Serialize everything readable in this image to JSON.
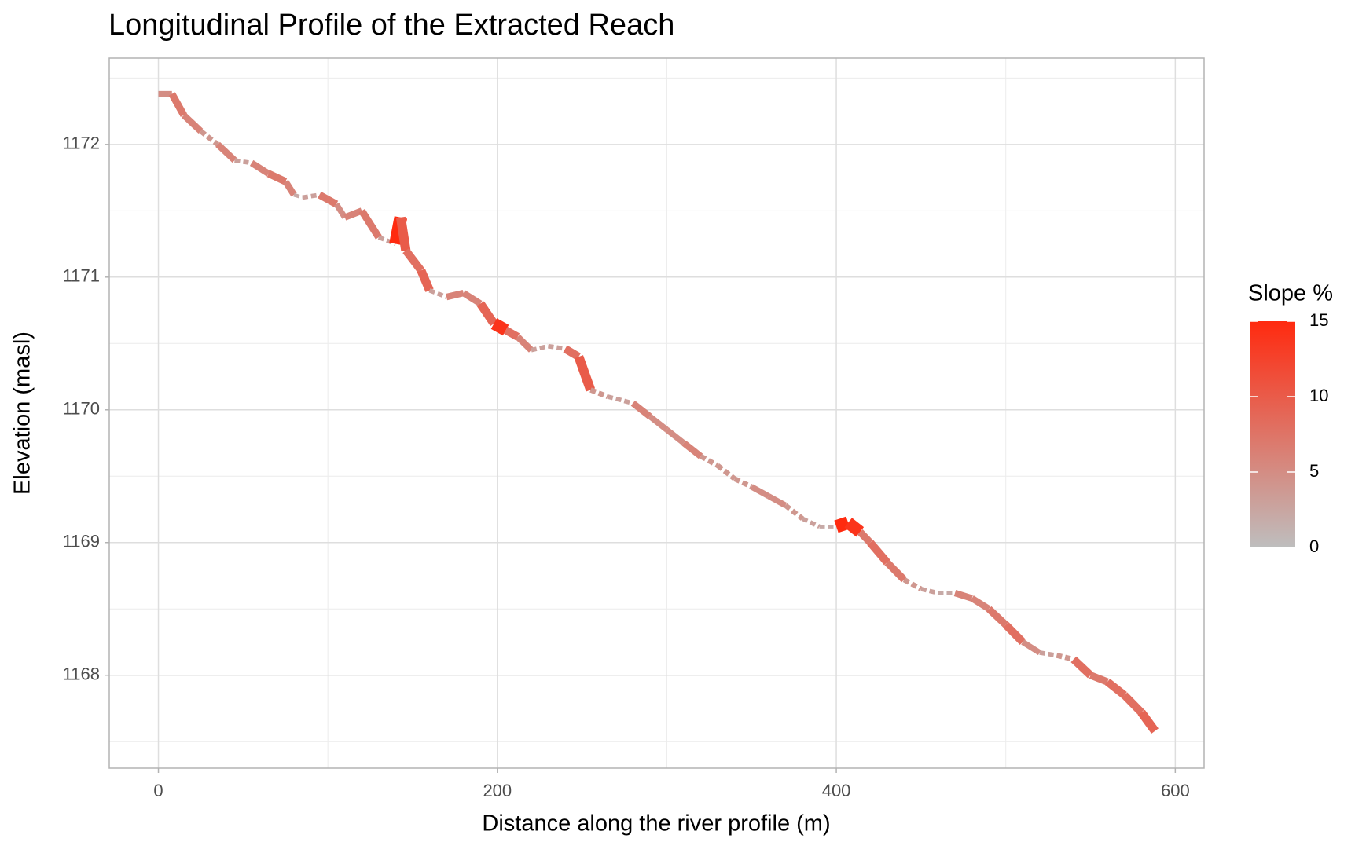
{
  "chart_data": {
    "type": "line",
    "title": "Longitudinal Profile of the Extracted Reach",
    "x_label": "Distance along the river profile (m)",
    "y_label": "Elevation (masl)",
    "legend_title": "Slope %",
    "x": [
      0,
      8,
      15,
      25,
      35,
      45,
      55,
      65,
      75,
      80,
      85,
      95,
      105,
      110,
      120,
      130,
      140,
      143,
      146,
      155,
      160,
      170,
      180,
      190,
      198,
      205,
      212,
      220,
      230,
      240,
      248,
      255,
      265,
      280,
      290,
      300,
      310,
      320,
      330,
      340,
      350,
      360,
      370,
      380,
      390,
      400,
      407,
      414,
      420,
      430,
      440,
      450,
      460,
      470,
      480,
      490,
      500,
      510,
      520,
      530,
      540,
      550,
      560,
      570,
      580,
      588
    ],
    "y": [
      1172.38,
      1172.38,
      1172.22,
      1172.1,
      1172.0,
      1171.88,
      1171.86,
      1171.78,
      1171.72,
      1171.62,
      1171.6,
      1171.62,
      1171.55,
      1171.45,
      1171.5,
      1171.3,
      1171.25,
      1171.45,
      1171.2,
      1171.05,
      1170.9,
      1170.85,
      1170.88,
      1170.8,
      1170.65,
      1170.6,
      1170.55,
      1170.45,
      1170.48,
      1170.46,
      1170.4,
      1170.15,
      1170.1,
      1170.05,
      1169.95,
      1169.85,
      1169.75,
      1169.65,
      1169.58,
      1169.48,
      1169.42,
      1169.35,
      1169.28,
      1169.18,
      1169.12,
      1169.12,
      1169.15,
      1169.08,
      1169.0,
      1168.85,
      1168.72,
      1168.65,
      1168.62,
      1168.62,
      1168.58,
      1168.5,
      1168.38,
      1168.25,
      1168.17,
      1168.15,
      1168.12,
      1168.0,
      1167.95,
      1167.85,
      1167.72,
      1167.58
    ],
    "slope": [
      0,
      5,
      7,
      6,
      4,
      6,
      3,
      6,
      7,
      6,
      2,
      3,
      7,
      5,
      6,
      7,
      3,
      15,
      10,
      8,
      9,
      3,
      6,
      6,
      9,
      14,
      8,
      6,
      3,
      3,
      8,
      10,
      4,
      3,
      6,
      5,
      5,
      6,
      4,
      4,
      4,
      5,
      5,
      4,
      3,
      2,
      15,
      14,
      7,
      8,
      7,
      4,
      3,
      2,
      6,
      6,
      7,
      8,
      5,
      3,
      4,
      8,
      7,
      8,
      8,
      9
    ],
    "color_low": "#bebebe",
    "color_high": "#ff2a0f",
    "color_lim": [
      0,
      15
    ],
    "color_ticks": [
      0,
      5,
      10,
      15
    ],
    "xlim": [
      -29,
      617
    ],
    "ylim": [
      1167.3,
      1172.65
    ],
    "xticks": [
      0,
      200,
      400,
      600
    ],
    "yticks": [
      1168,
      1169,
      1170,
      1171,
      1172
    ],
    "grid": true
  }
}
